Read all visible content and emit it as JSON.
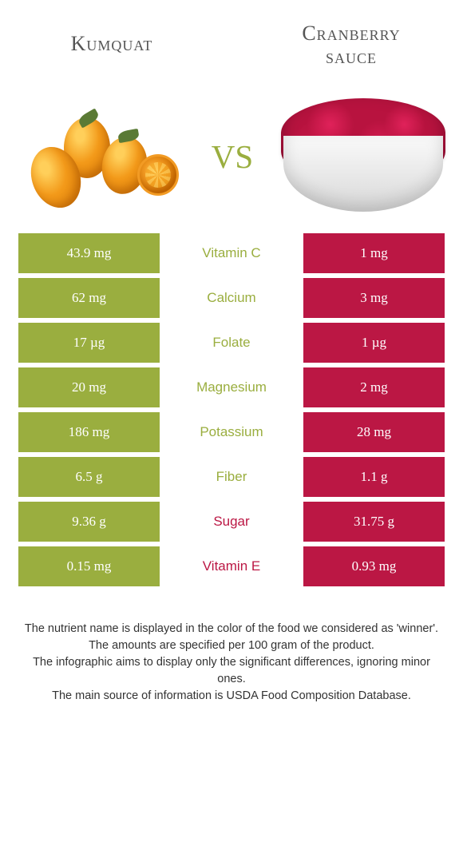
{
  "titles": {
    "left": "Kumquat",
    "right": "Cranberry\nsauce"
  },
  "vs_label": "vs",
  "colors": {
    "kumquat": "#9aae3f",
    "cranberry": "#bb1744",
    "text_on_bar": "#ffffff"
  },
  "rows": [
    {
      "nutrient": "Vitamin C",
      "left": "43.9 mg",
      "right": "1 mg",
      "winner": "left"
    },
    {
      "nutrient": "Calcium",
      "left": "62 mg",
      "right": "3 mg",
      "winner": "left"
    },
    {
      "nutrient": "Folate",
      "left": "17 µg",
      "right": "1 µg",
      "winner": "left"
    },
    {
      "nutrient": "Magnesium",
      "left": "20 mg",
      "right": "2 mg",
      "winner": "left"
    },
    {
      "nutrient": "Potassium",
      "left": "186 mg",
      "right": "28 mg",
      "winner": "left"
    },
    {
      "nutrient": "Fiber",
      "left": "6.5 g",
      "right": "1.1 g",
      "winner": "left"
    },
    {
      "nutrient": "Sugar",
      "left": "9.36 g",
      "right": "31.75 g",
      "winner": "right"
    },
    {
      "nutrient": "Vitamin E",
      "left": "0.15 mg",
      "right": "0.93 mg",
      "winner": "right"
    }
  ],
  "footer": [
    "The nutrient name is displayed in the color of the food we considered as 'winner'.",
    "The amounts are specified per 100 gram of the product.",
    "The infographic aims to display only the significant differences, ignoring minor ones.",
    "The main source of information is USDA Food Composition Database."
  ]
}
